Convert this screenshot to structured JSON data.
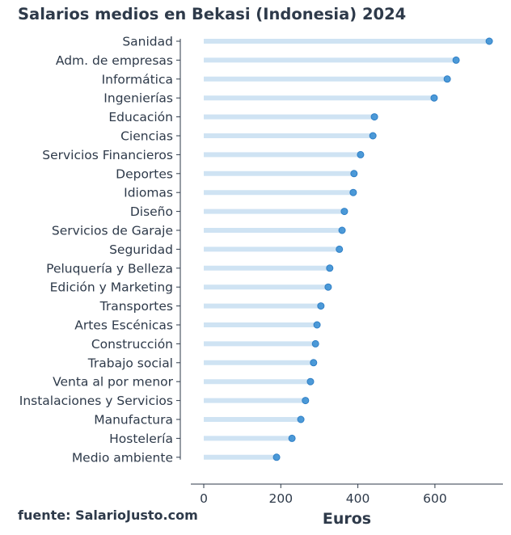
{
  "chart_data": {
    "type": "lollipop",
    "title": "Salarios medios en Bekasi (Indonesia) 2024",
    "source": "fuente: SalarioJusto.com",
    "xlabel": "Euros",
    "ylabel": "",
    "xlim": [
      -35,
      775
    ],
    "xticks": [
      0,
      200,
      400,
      600
    ],
    "grid": false,
    "legend": "none",
    "colors": {
      "stem": "#cfe3f3",
      "dot": "#3a8fd4",
      "dot_edge": "#2f7fc6",
      "axis": "#2e3a4a"
    },
    "categories": [
      "Sanidad",
      "Adm. de empresas",
      "Informática",
      "Ingenierías",
      "Educación",
      "Ciencias",
      "Servicios Financieros",
      "Deportes",
      "Idiomas",
      "Diseño",
      "Servicios de Garaje",
      "Seguridad",
      "Peluquería y Belleza",
      "Edición y Marketing",
      "Transportes",
      "Artes Escénicas",
      "Construcción",
      "Trabajo social",
      "Venta al por menor",
      "Instalaciones y Servicios",
      "Manufactura",
      "Hostelería",
      "Medio ambiente"
    ],
    "values": [
      741,
      655,
      632,
      598,
      443,
      439,
      407,
      390,
      388,
      365,
      359,
      352,
      327,
      323,
      304,
      294,
      290,
      285,
      277,
      264,
      252,
      229,
      189
    ]
  }
}
